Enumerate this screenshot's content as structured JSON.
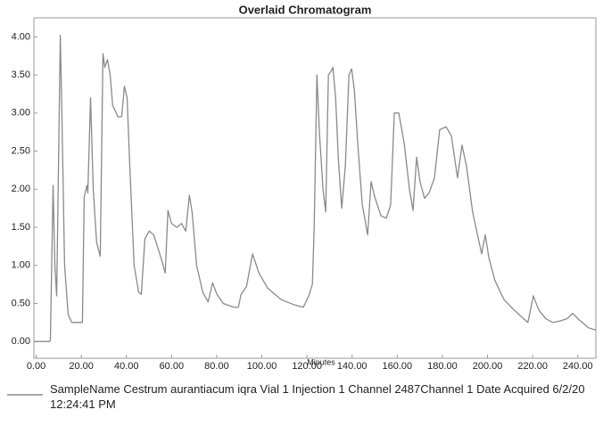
{
  "chart_data": {
    "type": "line",
    "title": "Overlaid Chromatogram",
    "x_label": "Minutes",
    "xlim": [
      -1,
      248
    ],
    "ylim": [
      -0.22,
      4.25
    ],
    "xticks": [
      {
        "value": 0,
        "label": "0.00"
      },
      {
        "value": 20,
        "label": "20.00"
      },
      {
        "value": 40,
        "label": "40.00"
      },
      {
        "value": 60,
        "label": "60.00"
      },
      {
        "value": 80,
        "label": "80.00"
      },
      {
        "value": 100,
        "label": "100.00"
      },
      {
        "value": 120,
        "label": "120.00"
      },
      {
        "value": 140,
        "label": "140.00"
      },
      {
        "value": 160,
        "label": "160.00"
      },
      {
        "value": 180,
        "label": "180.00"
      },
      {
        "value": 200,
        "label": "200.00"
      },
      {
        "value": 220,
        "label": "220.00"
      },
      {
        "value": 240,
        "label": "240.00"
      }
    ],
    "yticks": [
      {
        "value": 0,
        "label": "0.00"
      },
      {
        "value": 0.5,
        "label": "0.50"
      },
      {
        "value": 1,
        "label": "1.00"
      },
      {
        "value": 1.5,
        "label": "1.50"
      },
      {
        "value": 2,
        "label": "2.00"
      },
      {
        "value": 2.5,
        "label": "2.50"
      },
      {
        "value": 3,
        "label": "3.00"
      },
      {
        "value": 3.5,
        "label": "3.50"
      },
      {
        "value": 4,
        "label": "4.00"
      }
    ],
    "grid": false,
    "x": [
      -1,
      6,
      6.3,
      7.5,
      8.3,
      9.1,
      10.7,
      11.4,
      12.6,
      14.2,
      15.8,
      20.5,
      21.3,
      22.5,
      22.9,
      24.1,
      25.3,
      26.8,
      28.4,
      29.6,
      30.4,
      31.6,
      32.8,
      33.9,
      36.3,
      37.9,
      39.1,
      40.3,
      41.5,
      43.4,
      45.4,
      46.6,
      48.2,
      50.1,
      52.1,
      55.3,
      57.2,
      58.4,
      60,
      62.4,
      64.4,
      66.3,
      67.9,
      69.1,
      71.1,
      73.8,
      76.2,
      78.2,
      80.1,
      82.9,
      87.6,
      89.6,
      90.8,
      93.2,
      95.9,
      98.7,
      102.6,
      108.6,
      114.5,
      118.4,
      120.8,
      122.4,
      123.2,
      124.4,
      125.6,
      127.1,
      128.3,
      129.5,
      130.7,
      131.5,
      132.7,
      133.9,
      135.4,
      137,
      138.6,
      139.8,
      141,
      142.5,
      144.5,
      146.9,
      148.4,
      150,
      152.8,
      155.2,
      157.1,
      158.7,
      160.7,
      163.1,
      165.4,
      167,
      168.6,
      170.1,
      172.1,
      174.1,
      176.5,
      178.8,
      181.6,
      184,
      186.7,
      188.7,
      190.7,
      193.4,
      197.4,
      199,
      200.6,
      203.3,
      207.3,
      211.2,
      215.2,
      217.9,
      220.3,
      222.6,
      225.8,
      228.9,
      232.1,
      235.3,
      237.7,
      240.8,
      244.8,
      248
    ],
    "series": [
      {
        "name": "SampleName Cestrum aurantiacum iqra Vial 1 Injection 1 Channel 2487Channel 1 Date Acquired 6/2/20 12:24:41 PM",
        "color": "#8a8a8a",
        "values": [
          0,
          0,
          0.02,
          2.05,
          1.0,
          0.6,
          4.02,
          3.0,
          1.0,
          0.35,
          0.25,
          0.25,
          1.9,
          2.05,
          1.95,
          3.2,
          2.0,
          1.3,
          1.12,
          3.78,
          3.6,
          3.7,
          3.5,
          3.1,
          2.95,
          2.95,
          3.35,
          3.2,
          2.3,
          1.0,
          0.65,
          0.62,
          1.35,
          1.45,
          1.4,
          1.1,
          0.9,
          1.72,
          1.55,
          1.5,
          1.55,
          1.45,
          1.92,
          1.7,
          1.0,
          0.65,
          0.52,
          0.77,
          0.62,
          0.5,
          0.45,
          0.45,
          0.62,
          0.72,
          1.15,
          0.9,
          0.7,
          0.55,
          0.48,
          0.45,
          0.6,
          0.75,
          1.5,
          3.5,
          2.7,
          2.0,
          1.7,
          3.5,
          3.55,
          3.6,
          3.2,
          2.4,
          1.75,
          2.3,
          3.5,
          3.58,
          3.3,
          2.6,
          1.8,
          1.4,
          2.1,
          1.9,
          1.65,
          1.62,
          1.8,
          3.0,
          3.0,
          2.6,
          2.0,
          1.72,
          2.42,
          2.1,
          1.88,
          1.95,
          2.15,
          2.78,
          2.82,
          2.7,
          2.15,
          2.58,
          2.3,
          1.7,
          1.15,
          1.4,
          1.1,
          0.8,
          0.55,
          0.43,
          0.32,
          0.25,
          0.6,
          0.42,
          0.3,
          0.25,
          0.27,
          0.3,
          0.37,
          0.28,
          0.18,
          0.15
        ]
      }
    ]
  }
}
